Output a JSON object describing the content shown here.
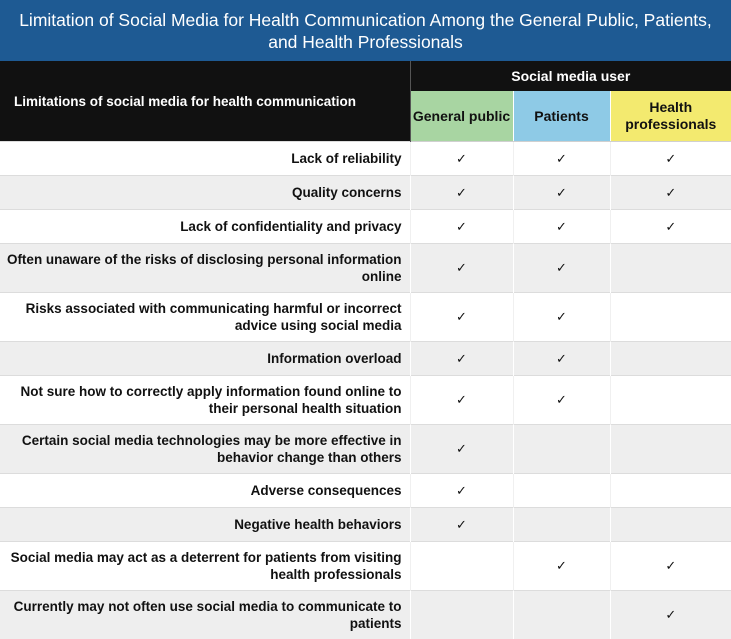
{
  "title": "Limitation of Social Media for Health Communication Among the General Public, Patients, and Health Professionals",
  "header": {
    "limitations_label": "Limitations of social media for health communication",
    "user_group_label": "Social media user",
    "columns": [
      {
        "label": "General public",
        "color": "#a8d5a2"
      },
      {
        "label": "Patients",
        "color": "#8ecae6"
      },
      {
        "label": "Health professionals",
        "color": "#f3ea6f"
      }
    ]
  },
  "check_glyph": "✓",
  "rows": [
    {
      "label": "Lack of reliability",
      "general_public": true,
      "patients": true,
      "health_professionals": true
    },
    {
      "label": "Quality concerns",
      "general_public": true,
      "patients": true,
      "health_professionals": true
    },
    {
      "label": "Lack of confidentiality and privacy",
      "general_public": true,
      "patients": true,
      "health_professionals": true
    },
    {
      "label": "Often unaware of the risks of disclosing personal information online",
      "general_public": true,
      "patients": true,
      "health_professionals": false
    },
    {
      "label": "Risks associated with communicating harmful or incorrect advice using social media",
      "general_public": true,
      "patients": true,
      "health_professionals": false
    },
    {
      "label": "Information overload",
      "general_public": true,
      "patients": true,
      "health_professionals": false
    },
    {
      "label": "Not sure how to correctly apply information found online to their personal health situation",
      "general_public": true,
      "patients": true,
      "health_professionals": false
    },
    {
      "label": "Certain social media technologies may be more effective in behavior change than others",
      "general_public": true,
      "patients": false,
      "health_professionals": false
    },
    {
      "label": "Adverse consequences",
      "general_public": true,
      "patients": false,
      "health_professionals": false
    },
    {
      "label": "Negative health behaviors",
      "general_public": true,
      "patients": false,
      "health_professionals": false
    },
    {
      "label": "Social media may act as a deterrent for patients from visiting health professionals",
      "general_public": false,
      "patients": true,
      "health_professionals": true
    },
    {
      "label": "Currently may not often use social media to communicate to patients",
      "general_public": false,
      "patients": false,
      "health_professionals": true
    }
  ]
}
